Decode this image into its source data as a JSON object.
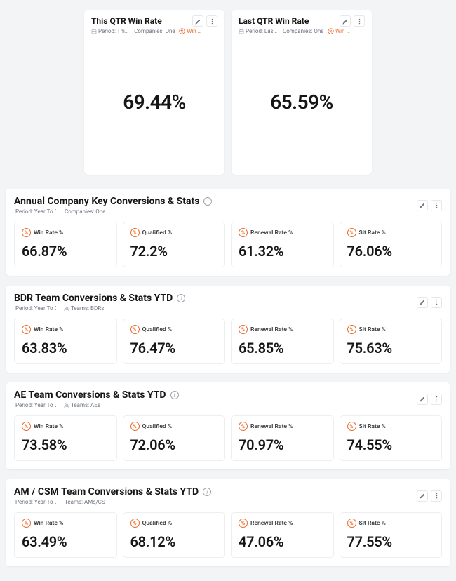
{
  "colors": {
    "accent": "#ea6a2b",
    "card_bg": "#ffffff",
    "page_bg": "#f3f4f6",
    "border": "#edeef0",
    "muted_text": "#6b7280"
  },
  "topTiles": [
    {
      "title": "This QTR Win Rate",
      "meta": {
        "period": "Period: Thi…",
        "companies": "Companies: OneUp…",
        "tag": "Win …"
      },
      "value": "69.44%"
    },
    {
      "title": "Last QTR Win Rate",
      "meta": {
        "period": "Period: Las…",
        "companies": "Companies: OneUp…",
        "tag": "Win …"
      },
      "value": "65.59%"
    }
  ],
  "sections": [
    {
      "title": "Annual Company Key Conversions & Stats",
      "meta": {
        "period": "Period: Year To Date",
        "scope_icon": "companies",
        "scope": "Companies: OneUp Sales Demo"
      },
      "stats": [
        {
          "label": "Win Rate %",
          "value": "66.87%"
        },
        {
          "label": "Qualified %",
          "value": "72.2%"
        },
        {
          "label": "Renewal Rate %",
          "value": "61.32%"
        },
        {
          "label": "Sit Rate %",
          "value": "76.06%"
        }
      ]
    },
    {
      "title": "BDR Team Conversions & Stats YTD",
      "meta": {
        "period": "Period: Year To Date",
        "scope_icon": "teams",
        "scope": "Teams: BDRs"
      },
      "stats": [
        {
          "label": "Win Rate %",
          "value": "63.83%"
        },
        {
          "label": "Qualified %",
          "value": "76.47%"
        },
        {
          "label": "Renewal Rate %",
          "value": "65.85%"
        },
        {
          "label": "Sit Rate %",
          "value": "75.63%"
        }
      ]
    },
    {
      "title": "AE Team Conversions & Stats YTD",
      "meta": {
        "period": "Period: Year To Date",
        "scope_icon": "teams",
        "scope": "Teams: AEs"
      },
      "stats": [
        {
          "label": "Win Rate %",
          "value": "73.58%"
        },
        {
          "label": "Qualified %",
          "value": "72.06%"
        },
        {
          "label": "Renewal Rate %",
          "value": "70.97%"
        },
        {
          "label": "Sit Rate %",
          "value": "74.55%"
        }
      ]
    },
    {
      "title": "AM / CSM Team Conversions & Stats YTD",
      "meta": {
        "period": "Period: Year To Date",
        "scope_icon": "teams",
        "scope": "Teams: AMs/CSMs"
      },
      "stats": [
        {
          "label": "Win Rate %",
          "value": "63.49%"
        },
        {
          "label": "Qualified %",
          "value": "68.12%"
        },
        {
          "label": "Renewal Rate %",
          "value": "47.06%"
        },
        {
          "label": "Sit Rate %",
          "value": "77.55%"
        }
      ]
    }
  ]
}
